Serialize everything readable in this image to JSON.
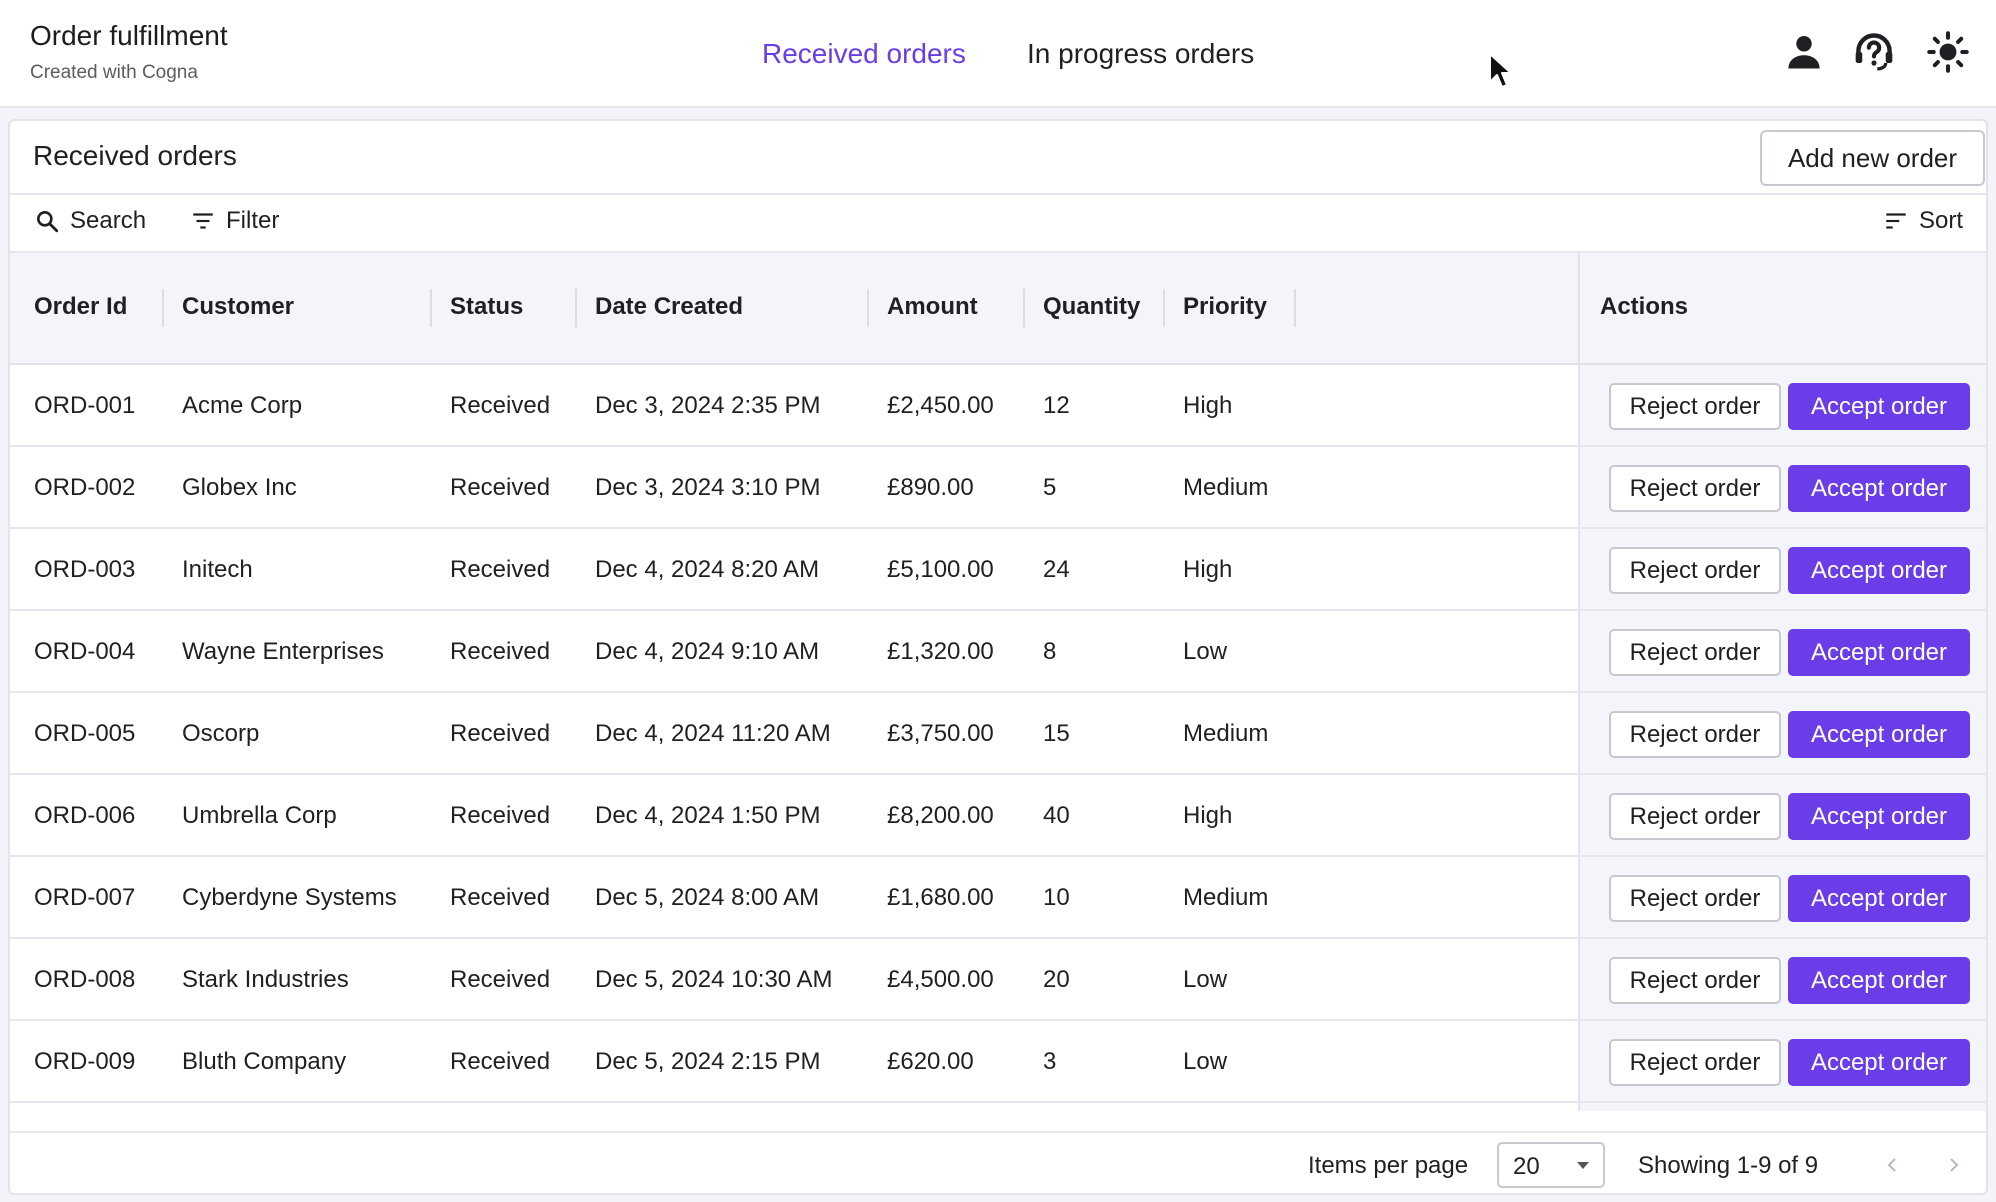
{
  "app": {
    "title": "Order fulfillment",
    "subtitle": "Created with Cogna"
  },
  "nav": {
    "tabs": [
      {
        "label": "Received orders",
        "active": true
      },
      {
        "label": "In progress orders",
        "active": false
      }
    ]
  },
  "header_icons": [
    "person-icon",
    "help-headset-icon",
    "sun-icon"
  ],
  "card": {
    "title": "Received orders",
    "add_button": "Add new order"
  },
  "toolbar": {
    "search_label": "Search",
    "filter_label": "Filter",
    "sort_label": "Sort"
  },
  "table": {
    "columns": [
      "Order Id",
      "Customer",
      "Status",
      "Date Created",
      "Amount",
      "Quantity",
      "Priority",
      "Actions"
    ],
    "reject_label": "Reject order",
    "accept_label": "Accept order",
    "rows": [
      {
        "id": "ORD-001",
        "customer": "Acme Corp",
        "status": "Received",
        "date": "Dec 3, 2024 2:35 PM",
        "amount": "£2,450.00",
        "quantity": "12",
        "priority": "High"
      },
      {
        "id": "ORD-002",
        "customer": "Globex Inc",
        "status": "Received",
        "date": "Dec 3, 2024 3:10 PM",
        "amount": "£890.00",
        "quantity": "5",
        "priority": "Medium"
      },
      {
        "id": "ORD-003",
        "customer": "Initech",
        "status": "Received",
        "date": "Dec 4, 2024 8:20 AM",
        "amount": "£5,100.00",
        "quantity": "24",
        "priority": "High"
      },
      {
        "id": "ORD-004",
        "customer": "Wayne Enterprises",
        "status": "Received",
        "date": "Dec 4, 2024 9:10 AM",
        "amount": "£1,320.00",
        "quantity": "8",
        "priority": "Low"
      },
      {
        "id": "ORD-005",
        "customer": "Oscorp",
        "status": "Received",
        "date": "Dec 4, 2024 11:20 AM",
        "amount": "£3,750.00",
        "quantity": "15",
        "priority": "Medium"
      },
      {
        "id": "ORD-006",
        "customer": "Umbrella Corp",
        "status": "Received",
        "date": "Dec 4, 2024 1:50 PM",
        "amount": "£8,200.00",
        "quantity": "40",
        "priority": "High"
      },
      {
        "id": "ORD-007",
        "customer": "Cyberdyne Systems",
        "status": "Received",
        "date": "Dec 5, 2024 8:00 AM",
        "amount": "£1,680.00",
        "quantity": "10",
        "priority": "Medium"
      },
      {
        "id": "ORD-008",
        "customer": "Stark Industries",
        "status": "Received",
        "date": "Dec 5, 2024 10:30 AM",
        "amount": "£4,500.00",
        "quantity": "20",
        "priority": "Low"
      },
      {
        "id": "ORD-009",
        "customer": "Bluth Company",
        "status": "Received",
        "date": "Dec 5, 2024 2:15 PM",
        "amount": "£620.00",
        "quantity": "3",
        "priority": "Low"
      }
    ]
  },
  "pagination": {
    "items_per_page_label": "Items per page",
    "items_per_page_value": "20",
    "showing_text": "Showing 1-9 of 9"
  },
  "colors": {
    "accent": "#6a3de8",
    "header_bg": "#f4f4fb",
    "border": "#e6e6ee"
  }
}
